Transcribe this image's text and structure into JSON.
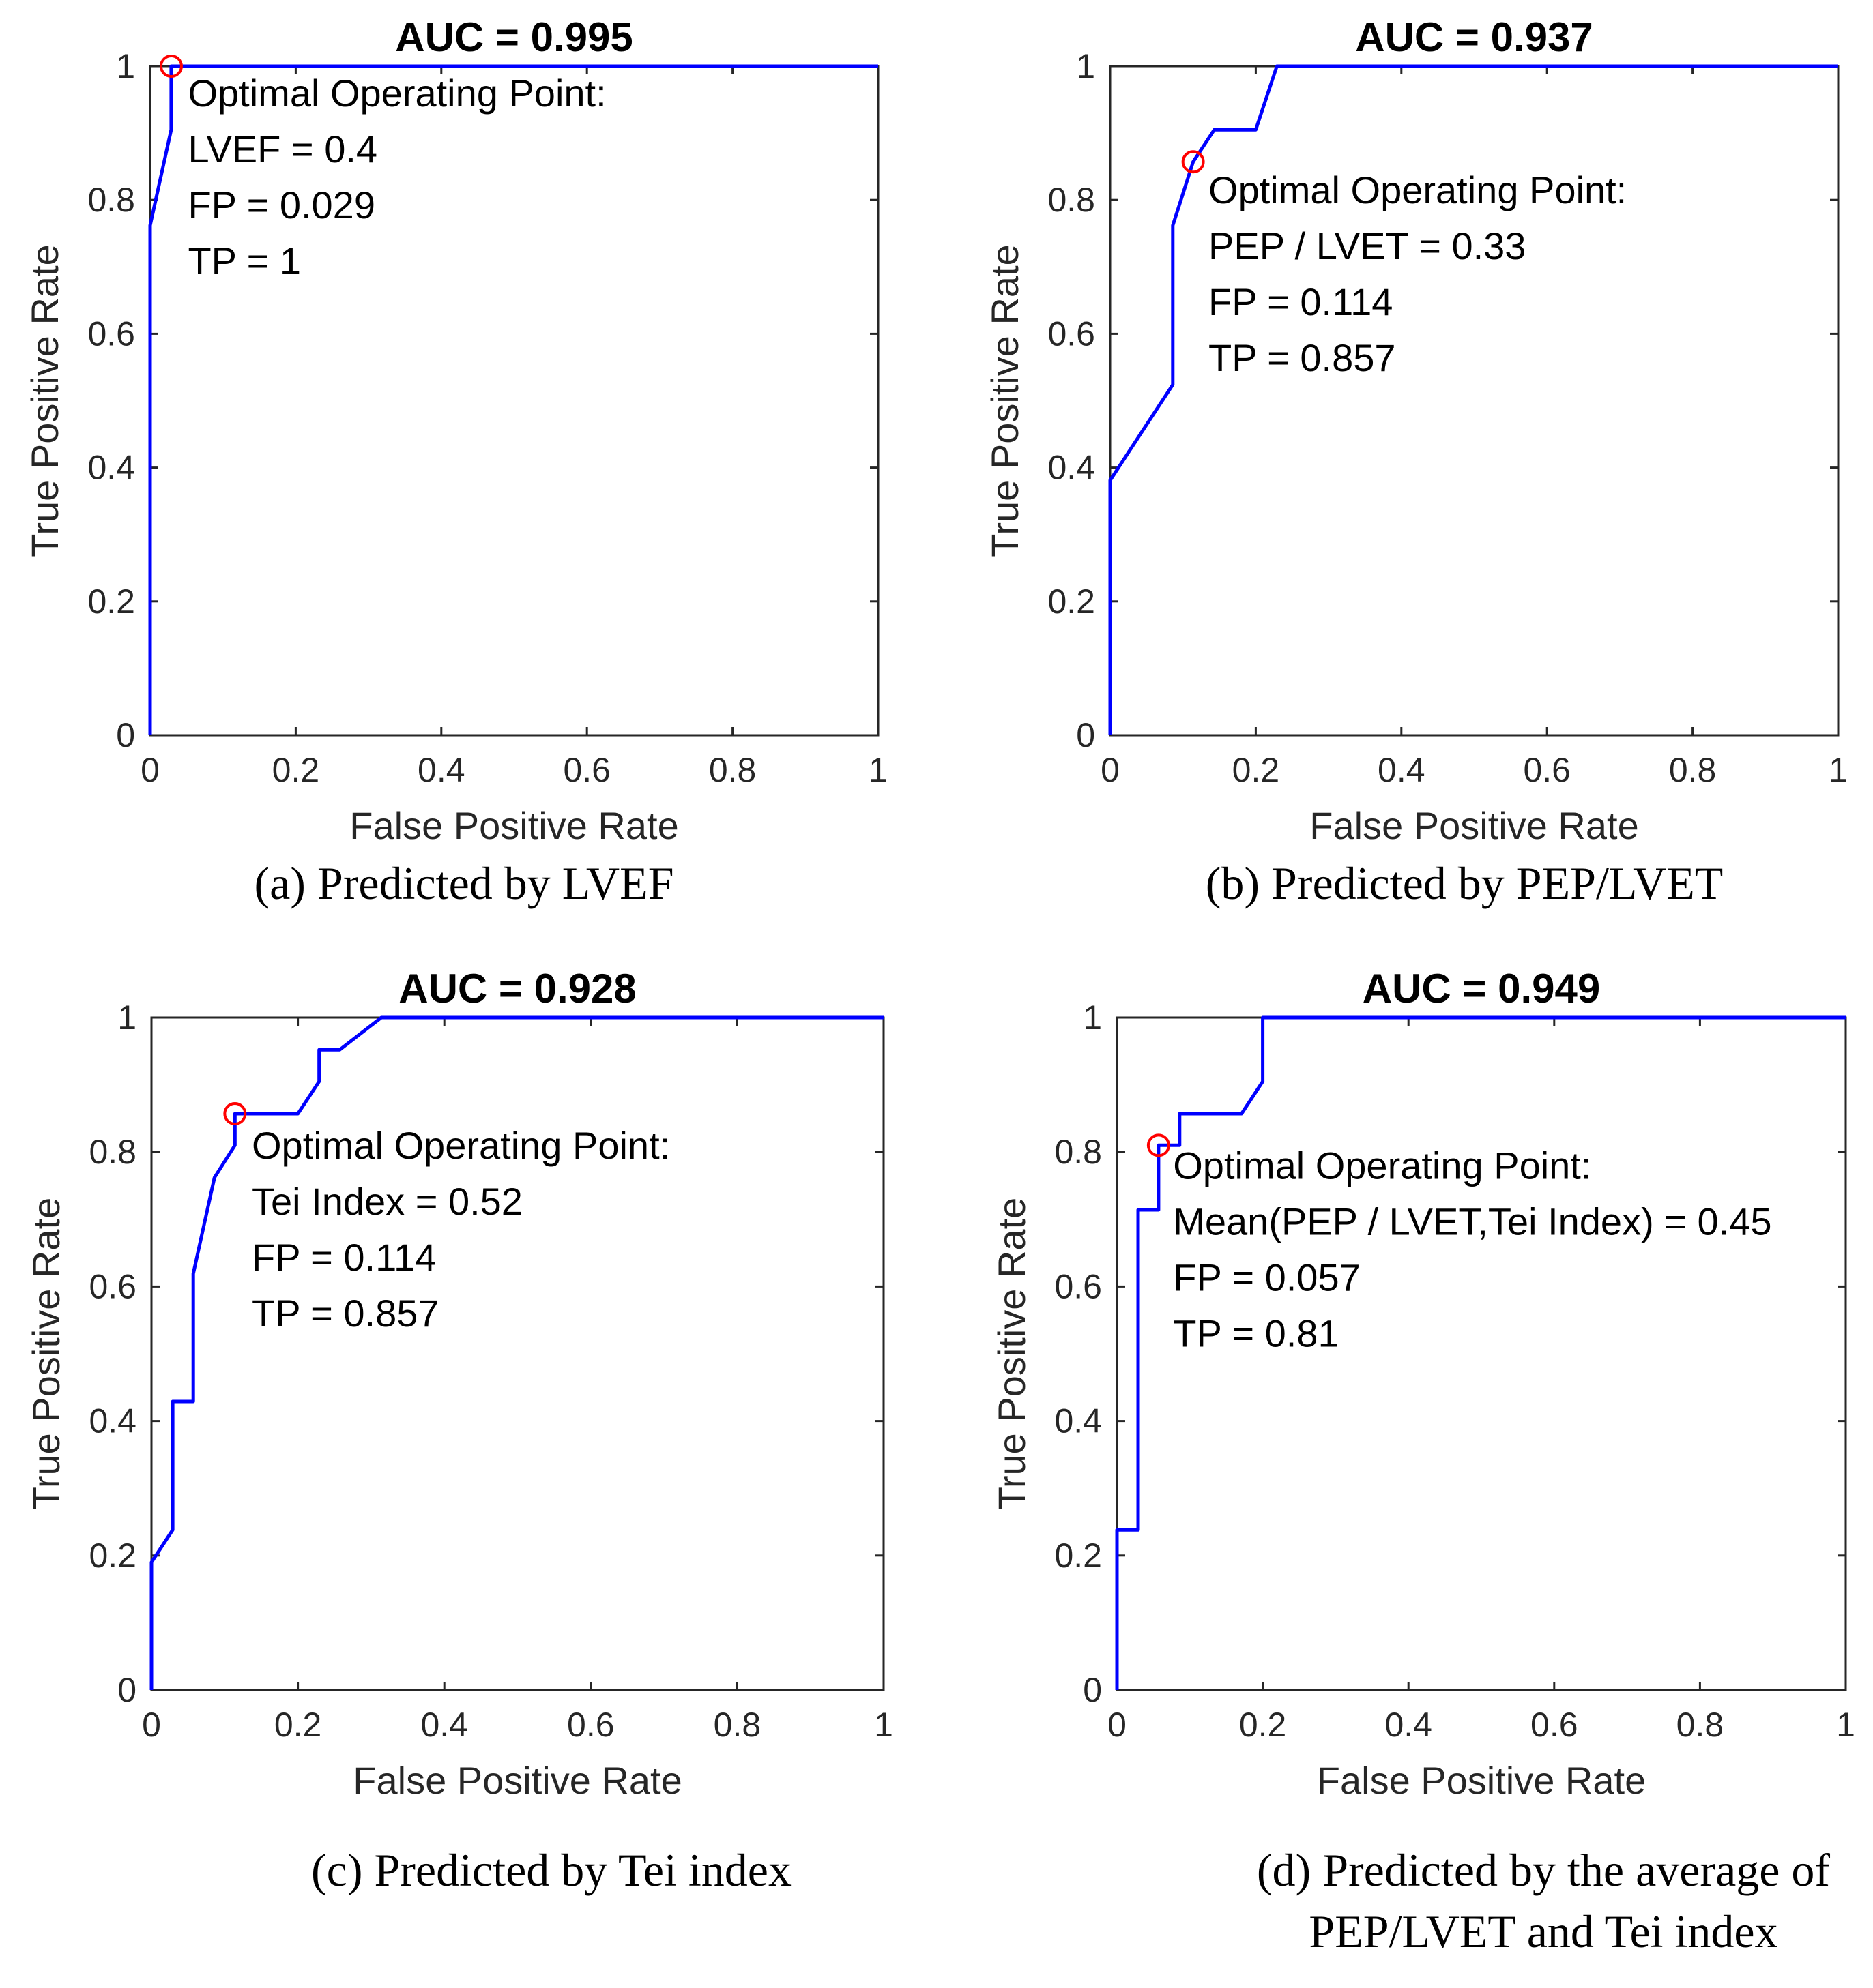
{
  "chart_data": [
    {
      "type": "line",
      "title": "AUC = 0.995",
      "xlabel": "False Positive Rate",
      "ylabel": "True Positive Rate",
      "xlim": [
        0,
        1
      ],
      "ylim": [
        0,
        1
      ],
      "xticks": [
        "0",
        "0.2",
        "0.4",
        "0.6",
        "0.8",
        "1"
      ],
      "yticks": [
        "0",
        "0.2",
        "0.4",
        "0.6",
        "0.8",
        "1"
      ],
      "series": [
        {
          "name": "ROC",
          "color": "#0000ff",
          "x": [
            0,
            0,
            0.029,
            0.029,
            1
          ],
          "y": [
            0,
            0.762,
            0.905,
            1,
            1
          ]
        }
      ],
      "optimal_point": {
        "x": 0.029,
        "y": 1,
        "color": "#ff0000"
      },
      "annotation": [
        "Optimal Operating Point:",
        "LVEF = 0.4",
        "FP = 0.029",
        "TP = 1"
      ],
      "caption": [
        "(a) Predicted by LVEF"
      ]
    },
    {
      "type": "line",
      "title": "AUC = 0.937",
      "xlabel": "False Positive Rate",
      "ylabel": "True Positive Rate",
      "xlim": [
        0,
        1
      ],
      "ylim": [
        0,
        1
      ],
      "xticks": [
        "0",
        "0.2",
        "0.4",
        "0.6",
        "0.8",
        "1"
      ],
      "yticks": [
        "0",
        "0.2",
        "0.4",
        "0.6",
        "0.8",
        "1"
      ],
      "series": [
        {
          "name": "ROC",
          "color": "#0000ff",
          "x": [
            0,
            0,
            0.086,
            0.086,
            0.114,
            0.143,
            0.2,
            0.229,
            1
          ],
          "y": [
            0,
            0.381,
            0.524,
            0.762,
            0.857,
            0.905,
            0.905,
            1,
            1
          ]
        }
      ],
      "optimal_point": {
        "x": 0.114,
        "y": 0.857,
        "color": "#ff0000"
      },
      "annotation": [
        "Optimal Operating Point:",
        "PEP / LVET = 0.33",
        "FP = 0.114",
        "TP = 0.857"
      ],
      "caption": [
        "(b) Predicted by PEP/LVET"
      ]
    },
    {
      "type": "line",
      "title": "AUC = 0.928",
      "xlabel": "False Positive Rate",
      "ylabel": "True Positive Rate",
      "xlim": [
        0,
        1
      ],
      "ylim": [
        0,
        1
      ],
      "xticks": [
        "0",
        "0.2",
        "0.4",
        "0.6",
        "0.8",
        "1"
      ],
      "yticks": [
        "0",
        "0.2",
        "0.4",
        "0.6",
        "0.8",
        "1"
      ],
      "series": [
        {
          "name": "ROC",
          "color": "#0000ff",
          "x": [
            0,
            0,
            0.029,
            0.029,
            0.057,
            0.057,
            0.086,
            0.114,
            0.114,
            0.2,
            0.229,
            0.229,
            0.257,
            0.314,
            1
          ],
          "y": [
            0,
            0.19,
            0.238,
            0.429,
            0.429,
            0.619,
            0.762,
            0.81,
            0.857,
            0.857,
            0.905,
            0.952,
            0.952,
            1,
            1
          ]
        }
      ],
      "optimal_point": {
        "x": 0.114,
        "y": 0.857,
        "color": "#ff0000"
      },
      "annotation": [
        "Optimal Operating Point:",
        "Tei Index = 0.52",
        "FP = 0.114",
        "TP = 0.857"
      ],
      "caption": [
        "(c) Predicted by Tei index"
      ]
    },
    {
      "type": "line",
      "title": "AUC = 0.949",
      "xlabel": "False Positive Rate",
      "ylabel": "True Positive Rate",
      "xlim": [
        0,
        1
      ],
      "ylim": [
        0,
        1
      ],
      "xticks": [
        "0",
        "0.2",
        "0.4",
        "0.6",
        "0.8",
        "1"
      ],
      "yticks": [
        "0",
        "0.2",
        "0.4",
        "0.6",
        "0.8",
        "1"
      ],
      "series": [
        {
          "name": "ROC",
          "color": "#0000ff",
          "x": [
            0,
            0,
            0.029,
            0.029,
            0.057,
            0.057,
            0.086,
            0.086,
            0.171,
            0.2,
            0.2,
            1
          ],
          "y": [
            0,
            0.238,
            0.238,
            0.714,
            0.714,
            0.81,
            0.81,
            0.857,
            0.857,
            0.905,
            1,
            1
          ]
        }
      ],
      "optimal_point": {
        "x": 0.057,
        "y": 0.81,
        "color": "#ff0000"
      },
      "annotation": [
        "Optimal Operating Point:",
        "Mean(PEP / LVET,Tei Index) = 0.45",
        "FP = 0.057",
        "TP = 0.81"
      ],
      "caption": [
        "(d) Predicted by the average of",
        "PEP/LVET and Tei index"
      ]
    }
  ]
}
